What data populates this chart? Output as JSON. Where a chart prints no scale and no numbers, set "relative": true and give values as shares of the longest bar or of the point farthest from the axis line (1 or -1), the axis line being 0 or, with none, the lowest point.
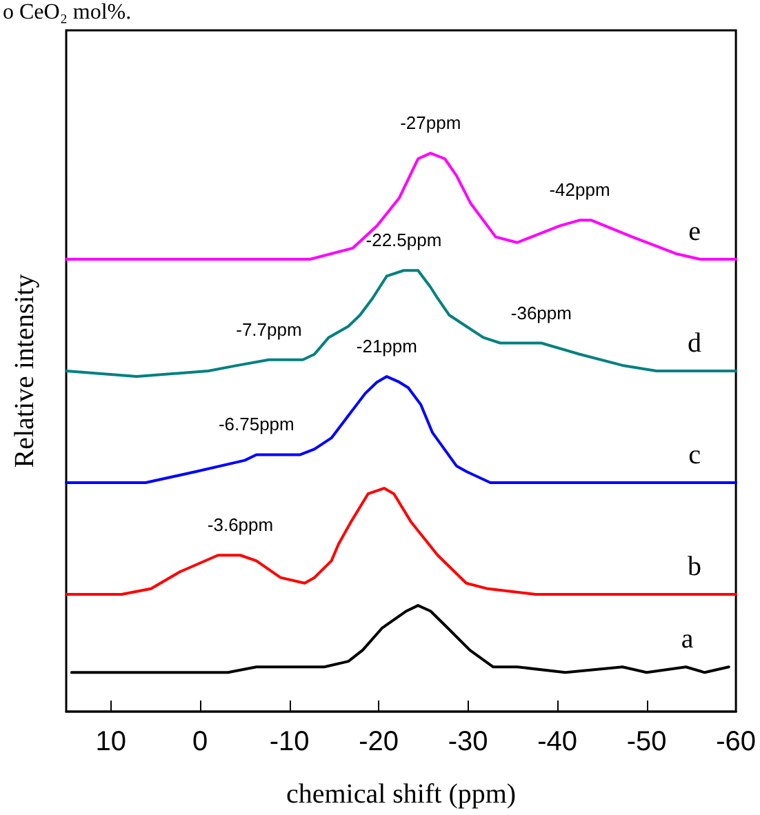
{
  "chart_data": {
    "type": "line",
    "relative": true,
    "xlabel": "chemical shift (ppm)",
    "ylabel": "Relative intensity",
    "xlim": [
      15,
      -60
    ],
    "xticks": [
      10,
      0,
      -10,
      -20,
      -30,
      -40,
      -50,
      -60
    ],
    "grid": false,
    "legend": false,
    "marker": "none",
    "line_style": "solid",
    "series": [
      {
        "name": "e",
        "color": "#ff00ff",
        "x": [
          15.0,
          -12.3,
          -17.1,
          -19.8,
          -22.3,
          -24.4,
          -25.8,
          -27.4,
          -28.7,
          -30.3,
          -33.1,
          -35.5,
          -37.1,
          -40.3,
          -42.5,
          -43.8,
          -48.4,
          -53.3,
          -56.0,
          -60.0
        ],
        "values": [
          0.81,
          0.81,
          0.83,
          0.87,
          0.92,
          0.99,
          1.0,
          0.99,
          0.96,
          0.91,
          0.85,
          0.84,
          0.85,
          0.87,
          0.88,
          0.88,
          0.85,
          0.82,
          0.81,
          0.81
        ]
      },
      {
        "name": "d",
        "color": "#008080",
        "x": [
          15.0,
          7.1,
          -0.9,
          -4.2,
          -7.7,
          -11.5,
          -12.8,
          -14.4,
          -16.6,
          -17.9,
          -19.3,
          -20.9,
          -22.8,
          -24.4,
          -25.8,
          -26.6,
          -27.9,
          -29.8,
          -31.7,
          -33.6,
          -35.8,
          -38.2,
          -42.5,
          -47.3,
          -51.1,
          -60.0
        ],
        "values": [
          0.61,
          0.6,
          0.61,
          0.62,
          0.63,
          0.63,
          0.64,
          0.67,
          0.69,
          0.71,
          0.74,
          0.78,
          0.79,
          0.79,
          0.76,
          0.74,
          0.71,
          0.69,
          0.67,
          0.66,
          0.66,
          0.66,
          0.64,
          0.62,
          0.61,
          0.61
        ]
      },
      {
        "name": "c",
        "color": "#0000ff",
        "x": [
          15.0,
          6.1,
          0.4,
          -5.0,
          -6.3,
          -11.2,
          -12.8,
          -14.7,
          -16.6,
          -18.5,
          -19.8,
          -20.9,
          -22.3,
          -23.3,
          -24.7,
          -26.0,
          -28.7,
          -29.8,
          -32.5,
          -60.0
        ],
        "values": [
          0.41,
          0.41,
          0.43,
          0.45,
          0.46,
          0.46,
          0.47,
          0.49,
          0.53,
          0.57,
          0.59,
          0.6,
          0.59,
          0.58,
          0.55,
          0.5,
          0.44,
          0.43,
          0.41,
          0.41
        ]
      },
      {
        "name": "b",
        "color": "#ff0000",
        "x": [
          15.0,
          8.8,
          5.5,
          2.3,
          -2.0,
          -4.5,
          -6.3,
          -9.0,
          -11.7,
          -12.8,
          -14.7,
          -15.5,
          -16.9,
          -18.8,
          -20.6,
          -21.7,
          -23.6,
          -26.6,
          -29.8,
          -32.2,
          -37.6,
          -60.0
        ],
        "values": [
          0.21,
          0.21,
          0.22,
          0.25,
          0.28,
          0.28,
          0.27,
          0.24,
          0.23,
          0.24,
          0.27,
          0.3,
          0.34,
          0.39,
          0.4,
          0.39,
          0.34,
          0.28,
          0.23,
          0.22,
          0.21,
          0.21
        ]
      },
      {
        "name": "a",
        "color": "#000000",
        "x": [
          14.4,
          -3.1,
          -6.3,
          -9.6,
          -11.7,
          -13.9,
          -16.6,
          -18.2,
          -20.4,
          -23.1,
          -24.4,
          -25.8,
          -27.7,
          -30.2,
          -32.8,
          -35.5,
          -40.9,
          -47.3,
          -50.0,
          -54.4,
          -56.5,
          -59.2
        ],
        "values": [
          0.07,
          0.07,
          0.08,
          0.08,
          0.08,
          0.08,
          0.09,
          0.11,
          0.15,
          0.18,
          0.19,
          0.18,
          0.15,
          0.11,
          0.08,
          0.08,
          0.07,
          0.08,
          0.07,
          0.08,
          0.07,
          0.08
        ]
      }
    ],
    "annotations": [
      "o CeO₂ mol%.",
      {
        "text": "-27ppm",
        "x": -25.8,
        "y": 1.0
      },
      {
        "text": "-42ppm",
        "x": -42.5,
        "y": 0.88
      },
      {
        "text": "-22.5ppm",
        "x": -22.8,
        "y": 0.79
      },
      {
        "text": "-7.7ppm",
        "x": -7.7,
        "y": 0.63
      },
      {
        "text": "-36ppm",
        "x": -38.2,
        "y": 0.66
      },
      {
        "text": "-21ppm",
        "x": -20.9,
        "y": 0.6
      },
      {
        "text": "-6.75ppm",
        "x": -6.3,
        "y": 0.46
      },
      {
        "text": "-3.6ppm",
        "x": -4.5,
        "y": 0.28
      }
    ]
  }
}
